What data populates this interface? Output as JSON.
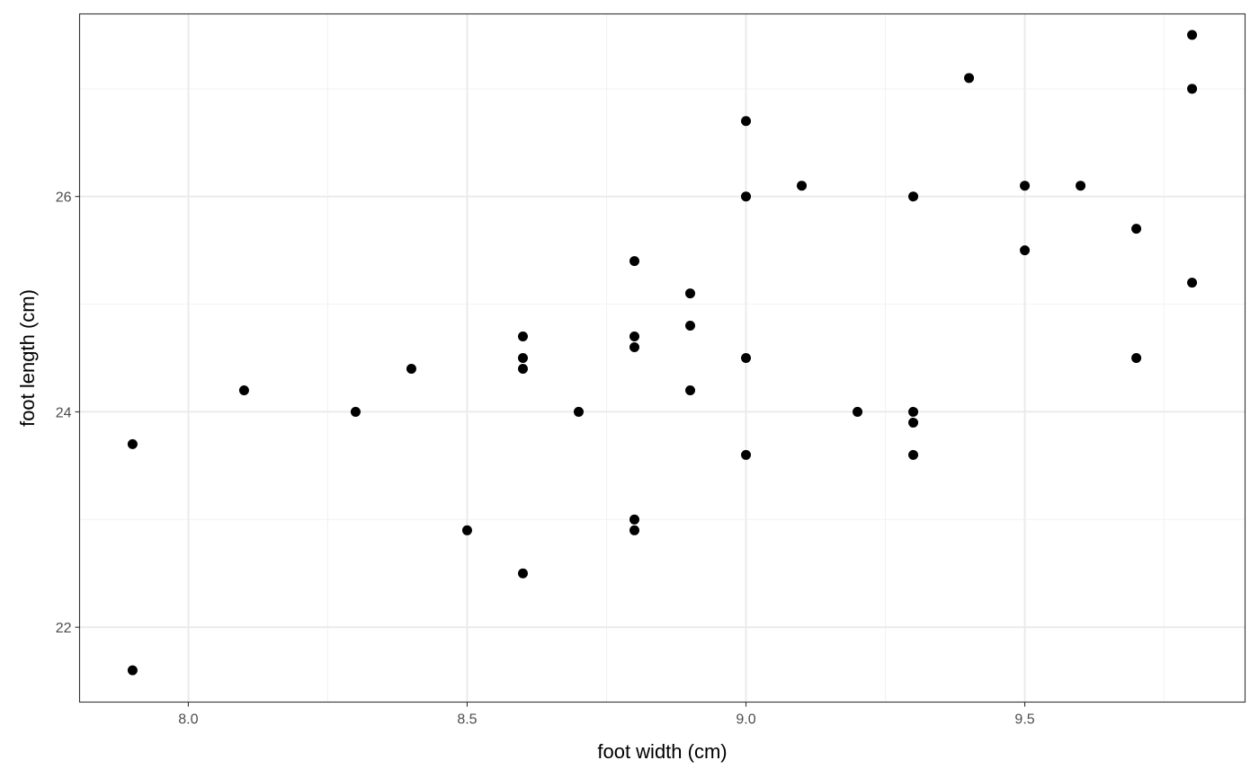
{
  "chart_data": {
    "type": "scatter",
    "title": "",
    "xlabel": "foot width (cm)",
    "ylabel": "foot length (cm)",
    "xlim": [
      7.805,
      9.895
    ],
    "ylim": [
      21.305,
      27.695
    ],
    "x_ticks": [
      "8.0",
      "8.5",
      "9.0",
      "9.5"
    ],
    "x_tick_values": [
      8.0,
      8.5,
      9.0,
      9.5
    ],
    "y_ticks": [
      "22",
      "24",
      "26"
    ],
    "y_tick_values": [
      22,
      24,
      26
    ],
    "x_minor_grid": [
      8.25,
      8.75,
      9.25,
      9.75
    ],
    "y_minor_grid": [
      23,
      25,
      27
    ],
    "grid": true,
    "legend": "none",
    "point_color": "#000000",
    "panel_border_color": "#333333",
    "major_grid_color": "#ebebeb",
    "minor_grid_color": "#f2f2f2",
    "points": [
      {
        "x": 7.9,
        "y": 23.7
      },
      {
        "x": 7.9,
        "y": 21.6
      },
      {
        "x": 8.1,
        "y": 24.2
      },
      {
        "x": 8.3,
        "y": 24.0
      },
      {
        "x": 8.4,
        "y": 24.4
      },
      {
        "x": 8.5,
        "y": 22.9
      },
      {
        "x": 8.6,
        "y": 24.7
      },
      {
        "x": 8.6,
        "y": 24.5
      },
      {
        "x": 8.6,
        "y": 24.4
      },
      {
        "x": 8.6,
        "y": 22.5
      },
      {
        "x": 8.7,
        "y": 24.0
      },
      {
        "x": 8.8,
        "y": 25.4
      },
      {
        "x": 8.8,
        "y": 24.7
      },
      {
        "x": 8.8,
        "y": 24.6
      },
      {
        "x": 8.8,
        "y": 23.0
      },
      {
        "x": 8.8,
        "y": 22.9
      },
      {
        "x": 8.9,
        "y": 25.1
      },
      {
        "x": 8.9,
        "y": 24.8
      },
      {
        "x": 8.9,
        "y": 24.2
      },
      {
        "x": 9.0,
        "y": 26.7
      },
      {
        "x": 9.0,
        "y": 26.0
      },
      {
        "x": 9.0,
        "y": 24.5
      },
      {
        "x": 9.0,
        "y": 23.6
      },
      {
        "x": 9.1,
        "y": 26.1
      },
      {
        "x": 9.2,
        "y": 24.0
      },
      {
        "x": 9.3,
        "y": 26.0
      },
      {
        "x": 9.3,
        "y": 24.0
      },
      {
        "x": 9.3,
        "y": 23.9
      },
      {
        "x": 9.3,
        "y": 23.6
      },
      {
        "x": 9.4,
        "y": 27.1
      },
      {
        "x": 9.5,
        "y": 26.1
      },
      {
        "x": 9.5,
        "y": 25.5
      },
      {
        "x": 9.6,
        "y": 26.1
      },
      {
        "x": 9.7,
        "y": 25.7
      },
      {
        "x": 9.7,
        "y": 24.5
      },
      {
        "x": 9.8,
        "y": 27.5
      },
      {
        "x": 9.8,
        "y": 27.0
      },
      {
        "x": 9.8,
        "y": 25.2
      }
    ]
  }
}
